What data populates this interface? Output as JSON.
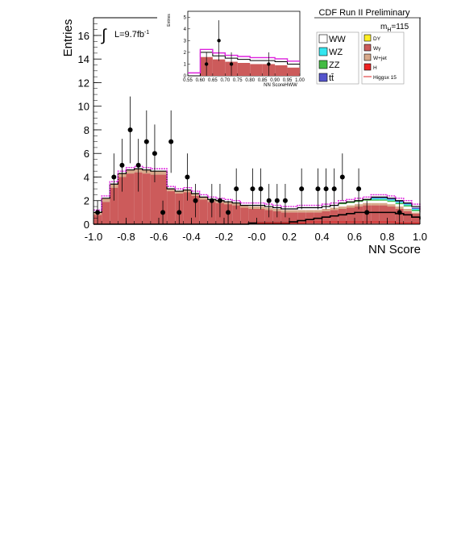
{
  "chart_data": {
    "type": "bar",
    "experiment": "CDF Run II Preliminary",
    "luminosity_label": "L=9.7fb",
    "luminosity_exp": "-1",
    "mass_label": "m",
    "mass_sub": "H",
    "mass_value": "=115",
    "xlabel": "NN Score",
    "ylabel": "Entries",
    "xlim": [
      -1.0,
      1.0
    ],
    "ylim": [
      0,
      17.5
    ],
    "x_ticks": [
      "-1.0",
      "-0.8",
      "-0.6",
      "-0.4",
      "-0.2",
      "-0.0",
      "0.2",
      "0.4",
      "0.6",
      "0.8",
      "1.0"
    ],
    "y_ticks": [
      "0",
      "2",
      "4",
      "6",
      "8",
      "10",
      "12",
      "14",
      "16"
    ],
    "bin_edges_start": -1.0,
    "bin_width": 0.05,
    "series": [
      {
        "name": "Wγ",
        "color": "#cc5b5b",
        "values": [
          0.8,
          1.9,
          3.1,
          4.0,
          4.3,
          4.4,
          4.3,
          4.2,
          4.2,
          2.8,
          2.6,
          2.7,
          2.4,
          2.1,
          1.9,
          1.8,
          1.7,
          1.6,
          1.4,
          1.3,
          1.3,
          1.2,
          1.1,
          1.0,
          1.0,
          1.0,
          1.0,
          1.0,
          1.1,
          1.2,
          1.3,
          1.4,
          1.5,
          1.6,
          1.6,
          1.6,
          1.5,
          1.3,
          1.1,
          0.9,
          0.6
        ]
      },
      {
        "name": "W+jet",
        "color": "#d8a98a",
        "values": [
          0.2,
          0.3,
          0.3,
          0.3,
          0.3,
          0.3,
          0.3,
          0.3,
          0.3,
          0.2,
          0.2,
          0.2,
          0.2,
          0.2,
          0.2,
          0.2,
          0.2,
          0.2,
          0.2,
          0.2,
          0.2,
          0.2,
          0.2,
          0.2,
          0.2,
          0.2,
          0.2,
          0.2,
          0.2,
          0.2,
          0.2,
          0.2,
          0.2,
          0.2,
          0.2,
          0.2,
          0.2,
          0.2,
          0.2,
          0.1,
          0.1
        ]
      },
      {
        "name": "WW",
        "color": "#ffffff",
        "values": [
          0.0,
          0.0,
          0.0,
          0.0,
          0.0,
          0.0,
          0.0,
          0.0,
          0.0,
          0.0,
          0.0,
          0.0,
          0.0,
          0.0,
          0.0,
          0.0,
          0.0,
          0.0,
          0.0,
          0.1,
          0.1,
          0.1,
          0.1,
          0.1,
          0.1,
          0.2,
          0.2,
          0.2,
          0.2,
          0.2,
          0.2,
          0.2,
          0.2,
          0.2,
          0.2,
          0.2,
          0.2,
          0.2,
          0.2,
          0.1,
          0.1
        ]
      },
      {
        "name": "ZZ",
        "color": "#44bb44",
        "values": [
          0.0,
          0.0,
          0.0,
          0.0,
          0.0,
          0.0,
          0.0,
          0.0,
          0.0,
          0.0,
          0.0,
          0.0,
          0.0,
          0.0,
          0.0,
          0.0,
          0.0,
          0.0,
          0.0,
          0.0,
          0.0,
          0.0,
          0.0,
          0.0,
          0.0,
          0.0,
          0.0,
          0.0,
          0.0,
          0.0,
          0.1,
          0.1,
          0.1,
          0.1,
          0.1,
          0.1,
          0.1,
          0.1,
          0.1,
          0.1,
          0.0
        ]
      },
      {
        "name": "WZ",
        "color": "#33e6f0",
        "values": [
          0.0,
          0.0,
          0.0,
          0.0,
          0.0,
          0.0,
          0.0,
          0.0,
          0.0,
          0.0,
          0.0,
          0.0,
          0.0,
          0.0,
          0.0,
          0.0,
          0.0,
          0.0,
          0.0,
          0.0,
          0.0,
          0.0,
          0.0,
          0.0,
          0.0,
          0.0,
          0.0,
          0.0,
          0.0,
          0.0,
          0.0,
          0.0,
          0.0,
          0.0,
          0.1,
          0.1,
          0.1,
          0.1,
          0.1,
          0.1,
          0.1
        ]
      },
      {
        "name": "tt̄",
        "color": "#5555cc",
        "values": [
          0.0,
          0.0,
          0.0,
          0.0,
          0.0,
          0.0,
          0.0,
          0.0,
          0.0,
          0.0,
          0.0,
          0.0,
          0.0,
          0.0,
          0.0,
          0.0,
          0.0,
          0.0,
          0.0,
          0.0,
          0.0,
          0.0,
          0.0,
          0.0,
          0.0,
          0.0,
          0.0,
          0.0,
          0.0,
          0.0,
          0.0,
          0.0,
          0.0,
          0.0,
          0.1,
          0.1,
          0.1,
          0.1,
          0.1,
          0.1,
          0.1
        ]
      },
      {
        "name": "DY",
        "color": "#ffee22",
        "values": [
          0.0,
          0.0,
          0.0,
          0.0,
          0.0,
          0.0,
          0.0,
          0.0,
          0.0,
          0.0,
          0.0,
          0.0,
          0.0,
          0.0,
          0.0,
          0.0,
          0.0,
          0.0,
          0.0,
          0.0,
          0.0,
          0.0,
          0.0,
          0.0,
          0.0,
          0.0,
          0.0,
          0.0,
          0.0,
          0.0,
          0.0,
          0.0,
          0.0,
          0.0,
          0.0,
          0.0,
          0.0,
          0.0,
          0.0,
          0.0,
          0.0
        ]
      }
    ],
    "background_total": [
      1.0,
      2.2,
      3.4,
      4.3,
      4.6,
      4.7,
      4.6,
      4.5,
      4.5,
      3.0,
      2.8,
      2.9,
      2.6,
      2.3,
      2.1,
      2.0,
      1.9,
      1.8,
      1.6,
      1.6,
      1.6,
      1.5,
      1.4,
      1.3,
      1.3,
      1.4,
      1.4,
      1.4,
      1.5,
      1.6,
      1.8,
      1.9,
      2.0,
      2.1,
      2.3,
      2.3,
      2.2,
      2.0,
      1.8,
      1.5,
      1.0
    ],
    "lower_curve": [
      0.0,
      0.0,
      0.0,
      0.0,
      0.0,
      0.0,
      0.0,
      0.0,
      0.0,
      0.0,
      0.0,
      0.0,
      0.0,
      0.0,
      0.0,
      0.0,
      0.0,
      0.0,
      0.0,
      0.1,
      0.1,
      0.1,
      0.1,
      0.1,
      0.2,
      0.3,
      0.4,
      0.5,
      0.6,
      0.7,
      0.8,
      0.9,
      1.0,
      1.0,
      1.0,
      1.0,
      1.0,
      0.9,
      0.8,
      0.6,
      0.4
    ],
    "higgs_series": {
      "name": "Higgsx 15",
      "color": "#dd2222",
      "values": [
        0.0,
        0.0,
        0.0,
        0.0,
        0.0,
        0.0,
        0.0,
        0.0,
        0.0,
        0.0,
        0.0,
        0.0,
        0.0,
        0.0,
        0.0,
        0.0,
        0.0,
        0.0,
        0.0,
        0.0,
        0.1,
        0.1,
        0.1,
        0.1,
        0.1,
        0.1,
        0.2,
        0.2,
        0.2,
        0.2,
        0.2,
        0.2,
        0.2,
        0.2,
        0.2,
        0.2,
        0.2,
        0.1,
        0.1,
        0.1,
        0.1
      ]
    },
    "h_series": {
      "name": "H",
      "color": "#ee2222"
    },
    "data_points": {
      "x": [
        -0.975,
        -0.875,
        -0.825,
        -0.775,
        -0.725,
        -0.675,
        -0.625,
        -0.575,
        -0.525,
        -0.475,
        -0.425,
        -0.375,
        -0.275,
        -0.225,
        -0.175,
        -0.125,
        -0.025,
        0.025,
        0.075,
        0.125,
        0.175,
        0.275,
        0.375,
        0.425,
        0.475,
        0.525,
        0.625,
        0.675,
        0.875
      ],
      "y": [
        1,
        4,
        5,
        8,
        5,
        7,
        6,
        1,
        7,
        1,
        4,
        2,
        2,
        2,
        1,
        3,
        3,
        3,
        2,
        2,
        2,
        3,
        3,
        3,
        3,
        4,
        3,
        1,
        1
      ]
    },
    "inset": {
      "xlabel": "NN ScoreHWW",
      "ylabel": "Entries",
      "xlim": [
        0.55,
        1.0
      ],
      "ylim": [
        0,
        5.5
      ],
      "x_ticks": [
        "0.55",
        "0.60",
        "0.65",
        "0.70",
        "0.75",
        "0.80",
        "0.85",
        "0.90",
        "0.95",
        "1.00"
      ],
      "y_ticks": [
        "0",
        "1",
        "2",
        "3",
        "4",
        "5"
      ],
      "bin_width": 0.05,
      "background_total": [
        0.0,
        2.0,
        1.7,
        1.5,
        1.4,
        1.3,
        1.3,
        1.2,
        1.0
      ],
      "wgamma": [
        0.0,
        1.6,
        1.4,
        1.2,
        1.1,
        1.0,
        1.0,
        0.9,
        0.7
      ],
      "data_points": {
        "x": [
          0.625,
          0.675,
          0.725,
          0.875
        ],
        "y": [
          1,
          3,
          1,
          1
        ]
      }
    }
  }
}
